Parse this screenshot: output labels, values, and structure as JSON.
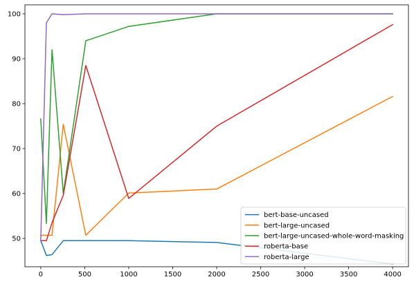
{
  "chart_data": {
    "type": "line",
    "title": "",
    "xlabel": "",
    "ylabel": "",
    "xlim": [
      -180,
      4180
    ],
    "ylim": [
      43.7,
      102.0
    ],
    "xticks": [
      0,
      500,
      1000,
      1500,
      2000,
      2500,
      3000,
      3500,
      4000
    ],
    "yticks": [
      50,
      60,
      70,
      80,
      90,
      100
    ],
    "grid": false,
    "legend_position": "lower-right",
    "series": [
      {
        "name": "bert-base-uncased",
        "color": "#1f77b4",
        "x": [
          0,
          64,
          128,
          256,
          512,
          1000,
          2000,
          4000
        ],
        "y": [
          49.5,
          46.2,
          46.4,
          49.5,
          49.5,
          49.5,
          49.1,
          44.3
        ]
      },
      {
        "name": "bert-large-uncased",
        "color": "#ff7f0e",
        "x": [
          0,
          64,
          128,
          256,
          512,
          1000,
          2000,
          4000
        ],
        "y": [
          50.7,
          50.7,
          50.7,
          75.4,
          50.7,
          60.1,
          61.0,
          81.6
        ]
      },
      {
        "name": "bert-large-uncased-whole-word-masking",
        "color": "#2ca02c",
        "x": [
          0,
          64,
          128,
          256,
          512,
          1000,
          2000,
          4000
        ],
        "y": [
          76.6,
          53.3,
          92.0,
          60.0,
          94.0,
          97.2,
          100.0,
          100.0
        ]
      },
      {
        "name": "roberta-base",
        "color": "#d62728",
        "x": [
          0,
          64,
          128,
          256,
          512,
          1000,
          2000,
          4000
        ],
        "y": [
          49.5,
          49.5,
          53.5,
          59.6,
          88.5,
          58.9,
          75.0,
          97.6
        ]
      },
      {
        "name": "roberta-large",
        "color": "#9467bd",
        "x": [
          0,
          64,
          128,
          256,
          512,
          1000,
          2000,
          4000
        ],
        "y": [
          49.5,
          98.0,
          100.0,
          99.8,
          100.0,
          100.0,
          100.0,
          100.0
        ]
      }
    ]
  }
}
